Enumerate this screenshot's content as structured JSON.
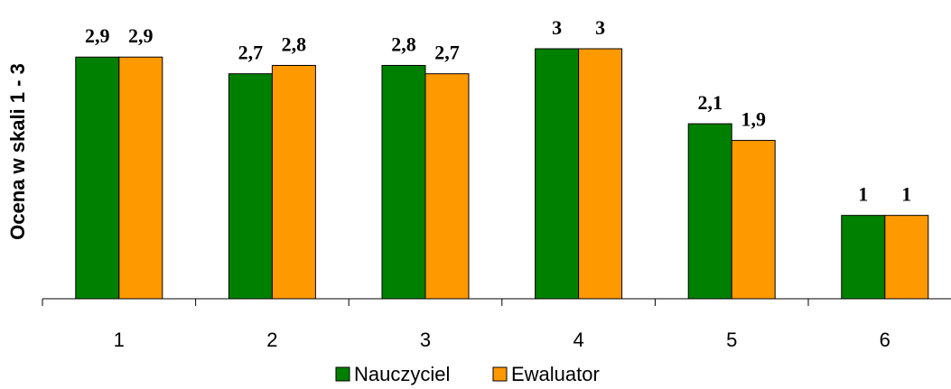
{
  "chart_data": {
    "type": "bar",
    "ylabel": "Ocena w skali 1 - 3",
    "xlabel": "",
    "categories": [
      "1",
      "2",
      "3",
      "4",
      "5",
      "6"
    ],
    "series": [
      {
        "name": "Nauczyciel",
        "color": "#008000",
        "values": [
          2.9,
          2.7,
          2.8,
          3,
          2.1,
          1
        ],
        "labels": [
          "2,9",
          "2,7",
          "2,8",
          "3",
          "2,1",
          "1"
        ]
      },
      {
        "name": "Ewaluator",
        "color": "#ff9900",
        "values": [
          2.9,
          2.8,
          2.7,
          3,
          1.9,
          1
        ],
        "labels": [
          "2,9",
          "2,8",
          "2,7",
          "3",
          "1,9",
          "1"
        ]
      }
    ],
    "ylim": [
      0,
      3
    ],
    "grid": false,
    "legend_position": "bottom-center"
  }
}
